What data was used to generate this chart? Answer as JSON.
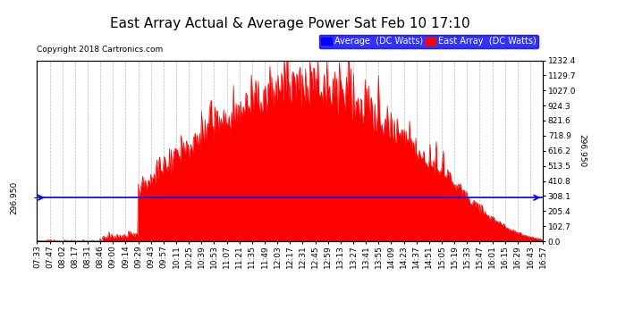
{
  "title": "East Array Actual & Average Power Sat Feb 10 17:10",
  "copyright": "Copyright 2018 Cartronics.com",
  "legend_avg": "Average  (DC Watts)",
  "legend_east": "East Array  (DC Watts)",
  "avg_line_value": 296.95,
  "y_right_ticks": [
    0.0,
    102.7,
    205.4,
    308.1,
    410.8,
    513.5,
    616.2,
    718.9,
    821.6,
    924.3,
    1027.0,
    1129.7,
    1232.4
  ],
  "x_tick_labels": [
    "07:33",
    "07:47",
    "08:02",
    "08:17",
    "08:31",
    "08:46",
    "09:00",
    "09:14",
    "09:29",
    "09:43",
    "09:57",
    "10:11",
    "10:25",
    "10:39",
    "10:53",
    "11:07",
    "11:21",
    "11:35",
    "11:49",
    "12:03",
    "12:17",
    "12:31",
    "12:45",
    "12:59",
    "13:13",
    "13:27",
    "13:41",
    "13:55",
    "14:09",
    "14:23",
    "14:37",
    "14:51",
    "15:05",
    "15:19",
    "15:33",
    "15:47",
    "16:01",
    "16:15",
    "16:29",
    "16:43",
    "16:57"
  ],
  "ylim": [
    0,
    1232.4
  ],
  "fill_color": "#FF0000",
  "avg_line_color": "#0000FF",
  "background_color": "#FFFFFF",
  "grid_color": "#BBBBBB",
  "title_fontsize": 11,
  "tick_fontsize": 6.5,
  "copyright_fontsize": 6.5,
  "legend_fontsize": 7
}
